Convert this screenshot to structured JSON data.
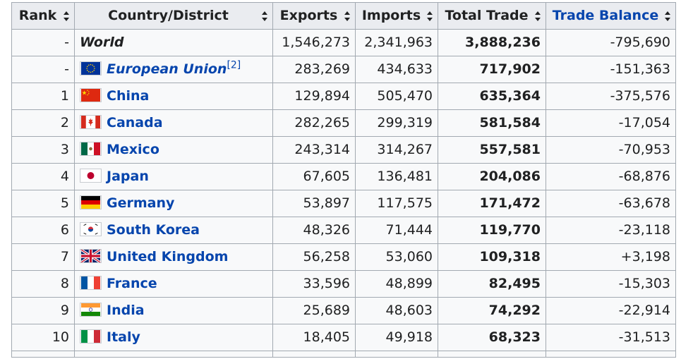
{
  "headers": {
    "rank": "Rank",
    "country": "Country/District",
    "exports": "Exports",
    "imports": "Imports",
    "total": "Total Trade",
    "balance": "Trade Balance"
  },
  "rows": [
    {
      "rank": "-",
      "country": "World",
      "flag": "",
      "exports": "1,546,273",
      "imports": "2,341,963",
      "total": "3,888,236",
      "balance": "-795,690"
    },
    {
      "rank": "-",
      "country": "European Union",
      "ref": "[2]",
      "flag": "eu-flag-icon",
      "exports": "283,269",
      "imports": "434,633",
      "total": "717,902",
      "balance": "-151,363"
    },
    {
      "rank": "1",
      "country": "China",
      "flag": "china-flag-icon",
      "exports": "129,894",
      "imports": "505,470",
      "total": "635,364",
      "balance": "-375,576"
    },
    {
      "rank": "2",
      "country": "Canada",
      "flag": "canada-flag-icon",
      "exports": "282,265",
      "imports": "299,319",
      "total": "581,584",
      "balance": "-17,054"
    },
    {
      "rank": "3",
      "country": "Mexico",
      "flag": "mexico-flag-icon",
      "exports": "243,314",
      "imports": "314,267",
      "total": "557,581",
      "balance": "-70,953"
    },
    {
      "rank": "4",
      "country": "Japan",
      "flag": "japan-flag-icon",
      "exports": "67,605",
      "imports": "136,481",
      "total": "204,086",
      "balance": "-68,876"
    },
    {
      "rank": "5",
      "country": "Germany",
      "flag": "germany-flag-icon",
      "exports": "53,897",
      "imports": "117,575",
      "total": "171,472",
      "balance": "-63,678"
    },
    {
      "rank": "6",
      "country": "South Korea",
      "flag": "south-korea-flag-icon",
      "exports": "48,326",
      "imports": "71,444",
      "total": "119,770",
      "balance": "-23,118"
    },
    {
      "rank": "7",
      "country": "United Kingdom",
      "flag": "uk-flag-icon",
      "exports": "56,258",
      "imports": "53,060",
      "total": "109,318",
      "balance": "+3,198"
    },
    {
      "rank": "8",
      "country": "France",
      "flag": "france-flag-icon",
      "exports": "33,596",
      "imports": "48,899",
      "total": "82,495",
      "balance": "-15,303"
    },
    {
      "rank": "9",
      "country": "India",
      "flag": "india-flag-icon",
      "exports": "25,689",
      "imports": "48,603",
      "total": "74,292",
      "balance": "-22,914"
    },
    {
      "rank": "10",
      "country": "Italy",
      "flag": "italy-flag-icon",
      "exports": "18,405",
      "imports": "49,918",
      "total": "68,323",
      "balance": "-31,513"
    }
  ],
  "colors": {
    "link": "#0645ad",
    "header_bg": "#eaecf0",
    "cell_bg": "#f8f9fa",
    "border": "#a2a9b1"
  }
}
